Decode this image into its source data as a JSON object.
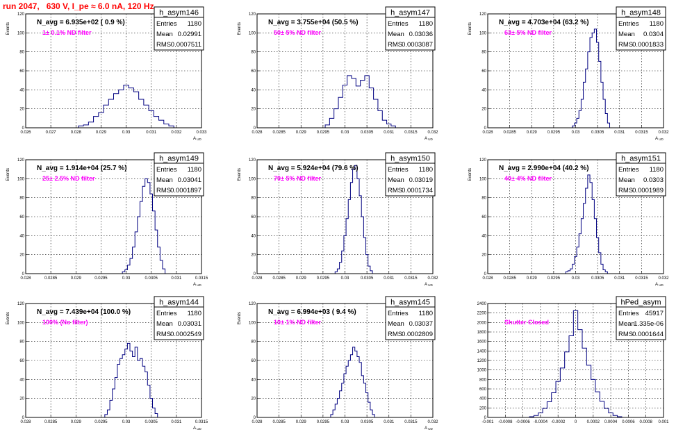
{
  "title": "run 2047,   630 V, I_pe ≈ 6.0 nA, 120 Hz",
  "chart_data": [
    {
      "type": "histogram",
      "name": "h_asym146",
      "navg": "N_avg = 6.935e+02 ( 0.9 %)",
      "note": "1± 0.1% ND filter",
      "stats": {
        "entries": "1180",
        "mean": "0.02991",
        "rms": "0.0007511"
      },
      "ylabel": "Events",
      "xlabel": "A_UD",
      "xlim": [
        0.026,
        0.033
      ],
      "ylim": [
        0,
        120
      ],
      "xticks": [
        "0.026",
        "0.027",
        "0.028",
        "0.029",
        "0.03",
        "0.031",
        "0.032",
        "0.033"
      ],
      "yticks": [
        0,
        20,
        40,
        60,
        80,
        100,
        120
      ],
      "x": [
        0.0282,
        0.0284,
        0.0286,
        0.0288,
        0.029,
        0.0292,
        0.0294,
        0.0296,
        0.0298,
        0.03,
        0.0302,
        0.0304,
        0.0306,
        0.0308,
        0.031,
        0.0312,
        0.0314,
        0.0316,
        0.0318
      ],
      "values": [
        2,
        3,
        6,
        12,
        16,
        24,
        30,
        36,
        40,
        45,
        42,
        38,
        30,
        24,
        18,
        12,
        8,
        4,
        2
      ]
    },
    {
      "type": "histogram",
      "name": "h_asym147",
      "navg": "N_avg = 3.755e+04 (50.5 %)",
      "note": "50± 5% ND filter",
      "stats": {
        "entries": "1180",
        "mean": "0.03036",
        "rms": "0.0003087"
      },
      "ylabel": "Events",
      "xlabel": "A_UD",
      "xlim": [
        0.028,
        0.032
      ],
      "ylim": [
        0,
        120
      ],
      "xticks": [
        "0.028",
        "0.0285",
        "0.029",
        "0.0295",
        "0.03",
        "0.0305",
        "0.031",
        "0.0315",
        "0.032"
      ],
      "yticks": [
        0,
        20,
        40,
        60,
        80,
        100,
        120
      ],
      "x": [
        0.0296,
        0.0297,
        0.0298,
        0.0299,
        0.03,
        0.0301,
        0.0302,
        0.0303,
        0.0304,
        0.0305,
        0.0306,
        0.0307,
        0.0308,
        0.0309,
        0.031,
        0.0311
      ],
      "values": [
        3,
        10,
        20,
        32,
        45,
        55,
        52,
        44,
        50,
        55,
        42,
        30,
        18,
        8,
        4,
        2
      ]
    },
    {
      "type": "histogram",
      "name": "h_asym148",
      "navg": "N_avg = 4.703e+04 (63.2 %)",
      "note": "63± 5% ND filter",
      "stats": {
        "entries": "1180",
        "mean": "0.0304",
        "rms": "0.0001833"
      },
      "ylabel": "Events",
      "xlabel": "A_UD",
      "xlim": [
        0.028,
        0.032
      ],
      "ylim": [
        0,
        120
      ],
      "xticks": [
        "0.028",
        "0.0285",
        "0.029",
        "0.0295",
        "0.03",
        "0.0305",
        "0.031",
        "0.0315",
        "0.032"
      ],
      "yticks": [
        0,
        20,
        40,
        60,
        80,
        100,
        120
      ],
      "x": [
        0.02995,
        0.03,
        0.03005,
        0.0301,
        0.03015,
        0.0302,
        0.03025,
        0.0303,
        0.03035,
        0.0304,
        0.03045,
        0.0305,
        0.03055,
        0.0306,
        0.03065,
        0.0307,
        0.03075
      ],
      "values": [
        2,
        5,
        10,
        18,
        30,
        48,
        62,
        80,
        95,
        100,
        104,
        90,
        70,
        48,
        30,
        15,
        5
      ]
    },
    {
      "type": "histogram",
      "name": "h_asym149",
      "navg": "N_avg = 1.914e+04 (25.7 %)",
      "note": "25± 2.5% ND filter",
      "stats": {
        "entries": "1180",
        "mean": "0.03041",
        "rms": "0.0001897"
      },
      "ylabel": "Events",
      "xlabel": "A_UD",
      "xlim": [
        0.028,
        0.0315
      ],
      "ylim": [
        0,
        120
      ],
      "xticks": [
        "0.028",
        "0.0285",
        "0.029",
        "0.0295",
        "0.03",
        "0.0305",
        "0.031",
        "0.0315"
      ],
      "yticks": [
        0,
        20,
        40,
        60,
        80,
        100,
        120
      ],
      "x": [
        0.02995,
        0.03,
        0.03005,
        0.0301,
        0.03015,
        0.0302,
        0.03025,
        0.0303,
        0.03035,
        0.0304,
        0.03045,
        0.0305,
        0.03055,
        0.0306,
        0.03065,
        0.0307,
        0.03075
      ],
      "values": [
        2,
        4,
        9,
        16,
        28,
        44,
        60,
        76,
        92,
        100,
        96,
        84,
        66,
        46,
        28,
        14,
        5
      ]
    },
    {
      "type": "histogram",
      "name": "h_asym150",
      "navg": "N_avg = 5.924e+04 (79.6 %)",
      "note": "79± 5% ND filter",
      "stats": {
        "entries": "1180",
        "mean": "0.03019",
        "rms": "0.0001734"
      },
      "ylabel": "Events",
      "xlabel": "A_UD",
      "xlim": [
        0.028,
        0.032
      ],
      "ylim": [
        0,
        120
      ],
      "xticks": [
        "0.028",
        "0.0285",
        "0.029",
        "0.0295",
        "0.03",
        "0.0305",
        "0.031",
        "0.0315",
        "0.032"
      ],
      "yticks": [
        0,
        20,
        40,
        60,
        80,
        100,
        120
      ],
      "x": [
        0.0298,
        0.02985,
        0.0299,
        0.02995,
        0.03,
        0.03005,
        0.0301,
        0.03015,
        0.0302,
        0.03025,
        0.0303,
        0.03035,
        0.0304,
        0.03045,
        0.0305,
        0.03055,
        0.0306
      ],
      "values": [
        2,
        5,
        12,
        24,
        40,
        58,
        78,
        96,
        110,
        114,
        100,
        82,
        60,
        38,
        20,
        8,
        3
      ]
    },
    {
      "type": "histogram",
      "name": "h_asym151",
      "navg": "N_avg = 2.990e+04 (40.2 %)",
      "note": "40± 4% ND filter",
      "stats": {
        "entries": "1180",
        "mean": "0.0303",
        "rms": "0.0001989"
      },
      "ylabel": "Events",
      "xlabel": "A_UD",
      "xlim": [
        0.028,
        0.032
      ],
      "ylim": [
        0,
        120
      ],
      "xticks": [
        "0.028",
        "0.0285",
        "0.029",
        "0.0295",
        "0.03",
        "0.0305",
        "0.031",
        "0.0315",
        "0.032"
      ],
      "yticks": [
        0,
        20,
        40,
        60,
        80,
        100,
        120
      ],
      "x": [
        0.0298,
        0.02985,
        0.0299,
        0.02995,
        0.03,
        0.03005,
        0.0301,
        0.03015,
        0.0302,
        0.03025,
        0.0303,
        0.03035,
        0.0304,
        0.03045,
        0.0305,
        0.03055,
        0.0306,
        0.03065,
        0.0307
      ],
      "values": [
        2,
        3,
        5,
        10,
        18,
        28,
        42,
        58,
        74,
        90,
        104,
        96,
        78,
        58,
        38,
        22,
        10,
        4,
        2
      ]
    },
    {
      "type": "histogram",
      "name": "h_asym144",
      "navg": "N_avg = 7.439e+04 (100.0 %)",
      "note": "100% (No filter)",
      "stats": {
        "entries": "1180",
        "mean": "0.03031",
        "rms": "0.0002549"
      },
      "ylabel": "Events",
      "xlabel": "A_UD",
      "xlim": [
        0.028,
        0.0315
      ],
      "ylim": [
        0,
        120
      ],
      "xticks": [
        "0.028",
        "0.0285",
        "0.029",
        "0.0295",
        "0.03",
        "0.0305",
        "0.031",
        "0.0315"
      ],
      "yticks": [
        0,
        20,
        40,
        60,
        80,
        100,
        120
      ],
      "x": [
        0.0296,
        0.02965,
        0.0297,
        0.02975,
        0.0298,
        0.02985,
        0.0299,
        0.02995,
        0.03,
        0.03005,
        0.0301,
        0.03015,
        0.0302,
        0.03025,
        0.0303,
        0.03035,
        0.0304,
        0.03045,
        0.0305,
        0.03055,
        0.0306
      ],
      "values": [
        3,
        8,
        18,
        30,
        42,
        56,
        62,
        66,
        72,
        78,
        70,
        64,
        74,
        60,
        62,
        54,
        48,
        34,
        20,
        10,
        4
      ]
    },
    {
      "type": "histogram",
      "name": "h_asym145",
      "navg": "N_avg = 6.994e+03 ( 9.4 %)",
      "note": "10± 1% ND filter",
      "stats": {
        "entries": "1180",
        "mean": "0.03037",
        "rms": "0.0002809"
      },
      "ylabel": "Events",
      "xlabel": "A_UD",
      "xlim": [
        0.028,
        0.032
      ],
      "ylim": [
        0,
        120
      ],
      "xticks": [
        "0.028",
        "0.0285",
        "0.029",
        "0.0295",
        "0.03",
        "0.0305",
        "0.031",
        "0.0315",
        "0.032"
      ],
      "yticks": [
        0,
        20,
        40,
        60,
        80,
        100,
        120
      ],
      "x": [
        0.0297,
        0.02975,
        0.0298,
        0.02985,
        0.0299,
        0.02995,
        0.03,
        0.03005,
        0.0301,
        0.03015,
        0.0302,
        0.03025,
        0.0303,
        0.03035,
        0.0304,
        0.03045,
        0.0305,
        0.03055,
        0.0306,
        0.03065
      ],
      "values": [
        3,
        8,
        14,
        20,
        28,
        36,
        46,
        54,
        60,
        66,
        74,
        70,
        64,
        58,
        44,
        36,
        26,
        16,
        8,
        3
      ]
    },
    {
      "type": "histogram",
      "name": "hPed_asym",
      "navg": "",
      "note": "Shutter Closed",
      "stats": {
        "entries": "45917",
        "mean": "1.335e-06",
        "rms": "0.0001644"
      },
      "ylabel": "",
      "xlabel": "",
      "xlim": [
        -0.001,
        0.001
      ],
      "ylim": [
        0,
        2400
      ],
      "xticks": [
        "-0.001",
        "-0.0008",
        "-0.0006",
        "-0.0004",
        "-0.0002",
        "0",
        "0.0002",
        "0.0004",
        "0.0006",
        "0.0008",
        "0.001"
      ],
      "yticks": [
        0,
        200,
        400,
        600,
        800,
        1000,
        1200,
        1400,
        1600,
        1800,
        2000,
        2200,
        2400
      ],
      "x": [
        -0.0005,
        -0.00045,
        -0.0004,
        -0.00035,
        -0.0003,
        -0.00025,
        -0.0002,
        -0.00015,
        -0.0001,
        -5e-05,
        0,
        5e-05,
        0.0001,
        0.00015,
        0.0002,
        0.00025,
        0.0003,
        0.00035,
        0.0004,
        0.00045,
        0.0005
      ],
      "values": [
        15,
        40,
        95,
        190,
        330,
        520,
        760,
        1040,
        1380,
        1720,
        2250,
        1850,
        1460,
        1100,
        800,
        540,
        340,
        190,
        95,
        40,
        15
      ]
    }
  ]
}
